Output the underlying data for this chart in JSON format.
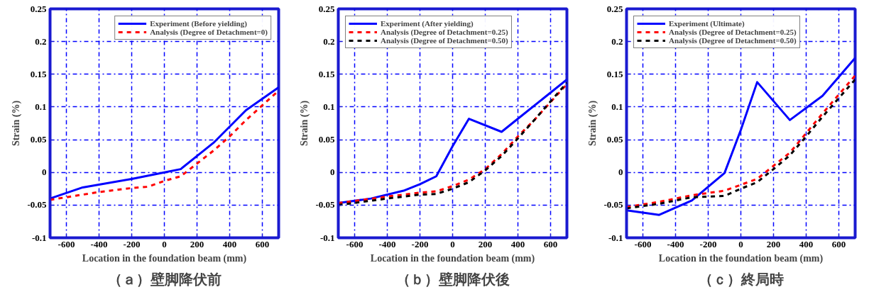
{
  "chart_data": [
    {
      "type": "line",
      "title": "（ａ）壁脚降伏前",
      "xlabel": "Location in the foundation beam (mm)",
      "ylabel": "Strain (%)",
      "xlim": [
        -700,
        700
      ],
      "ylim": [
        -0.1,
        0.25
      ],
      "xticks": [
        -600,
        -400,
        -200,
        0,
        200,
        400,
        600
      ],
      "yticks": [
        -0.1,
        -0.05,
        0,
        0.05,
        0.1,
        0.15,
        0.2,
        0.25
      ],
      "grid": true,
      "legend": "top right",
      "series": [
        {
          "name": "Experiment (Before yielding)",
          "color": "#0000ff",
          "line_style": "solid",
          "x": [
            -700,
            -500,
            -200,
            0,
            100,
            300,
            500,
            700
          ],
          "values": [
            -0.04,
            -0.023,
            -0.01,
            0.0,
            0.005,
            0.045,
            0.095,
            0.13
          ]
        },
        {
          "name": "Analysis (Degree of Detachment=0)",
          "color": "#ff0000",
          "line_style": "dashed",
          "x": [
            -700,
            -400,
            -200,
            -100,
            0,
            100,
            300,
            400,
            500,
            700
          ],
          "values": [
            -0.042,
            -0.03,
            -0.024,
            -0.022,
            -0.013,
            -0.006,
            0.033,
            0.055,
            0.08,
            0.125
          ]
        }
      ]
    },
    {
      "type": "line",
      "title": "（ｂ）壁脚降伏後",
      "xlabel": "Location in the foundation beam (mm)",
      "ylabel": "Strain (%)",
      "xlim": [
        -700,
        700
      ],
      "ylim": [
        -0.1,
        0.25
      ],
      "xticks": [
        -600,
        -400,
        -200,
        0,
        200,
        400,
        600
      ],
      "yticks": [
        -0.1,
        -0.05,
        0,
        0.05,
        0.1,
        0.15,
        0.2,
        0.25
      ],
      "grid": true,
      "legend": "top left",
      "series": [
        {
          "name": "Experiment (After yielding)",
          "color": "#0000ff",
          "line_style": "solid",
          "x": [
            -700,
            -500,
            -300,
            -200,
            -100,
            0,
            100,
            300,
            400,
            700
          ],
          "values": [
            -0.047,
            -0.04,
            -0.028,
            -0.018,
            -0.006,
            0.04,
            0.082,
            0.062,
            0.082,
            0.142
          ]
        },
        {
          "name": "Analysis (Degree of Detachment=0.25)",
          "color": "#ff0000",
          "line_style": "dashed",
          "x": [
            -700,
            -400,
            -200,
            -100,
            0,
            100,
            200,
            300,
            400,
            500,
            700
          ],
          "values": [
            -0.047,
            -0.037,
            -0.031,
            -0.029,
            -0.021,
            -0.011,
            0.005,
            0.028,
            0.055,
            0.08,
            0.135
          ]
        },
        {
          "name": "Analysis (Degree of Detachment=0.50)",
          "color": "#000000",
          "line_style": "dashed",
          "x": [
            -700,
            -400,
            -200,
            -100,
            0,
            100,
            200,
            300,
            400,
            500,
            700
          ],
          "values": [
            -0.05,
            -0.04,
            -0.034,
            -0.033,
            -0.025,
            -0.015,
            0.003,
            0.025,
            0.052,
            0.08,
            0.137
          ]
        }
      ]
    },
    {
      "type": "line",
      "title": "（ｃ）終局時",
      "xlabel": "Location in the foundation beam (mm)",
      "ylabel": "Strain (%)",
      "xlim": [
        -700,
        700
      ],
      "ylim": [
        -0.1,
        0.25
      ],
      "xticks": [
        -600,
        -400,
        -200,
        0,
        200,
        400,
        600
      ],
      "yticks": [
        -0.1,
        -0.05,
        0,
        0.05,
        0.1,
        0.15,
        0.2,
        0.25
      ],
      "grid": true,
      "legend": "top left",
      "series": [
        {
          "name": "Experiment (Ultimate)",
          "color": "#0000ff",
          "line_style": "solid",
          "x": [
            -700,
            -500,
            -300,
            -100,
            0,
            100,
            300,
            500,
            700
          ],
          "values": [
            -0.058,
            -0.065,
            -0.043,
            -0.001,
            0.065,
            0.138,
            0.08,
            0.117,
            0.175
          ]
        },
        {
          "name": "Analysis (Degree of Detachment=0.25)",
          "color": "#ff0000",
          "line_style": "dashed",
          "x": [
            -700,
            -500,
            -300,
            -100,
            0,
            100,
            200,
            300,
            400,
            500,
            700
          ],
          "values": [
            -0.053,
            -0.045,
            -0.035,
            -0.028,
            -0.019,
            -0.01,
            0.01,
            0.03,
            0.06,
            0.09,
            0.148
          ]
        },
        {
          "name": "Analysis (Degree of Detachment=0.50)",
          "color": "#000000",
          "line_style": "dashed",
          "x": [
            -700,
            -500,
            -300,
            -100,
            0,
            100,
            200,
            300,
            400,
            500,
            700
          ],
          "values": [
            -0.055,
            -0.048,
            -0.038,
            -0.036,
            -0.025,
            -0.015,
            0.005,
            0.026,
            0.055,
            0.085,
            0.142
          ]
        }
      ]
    }
  ]
}
